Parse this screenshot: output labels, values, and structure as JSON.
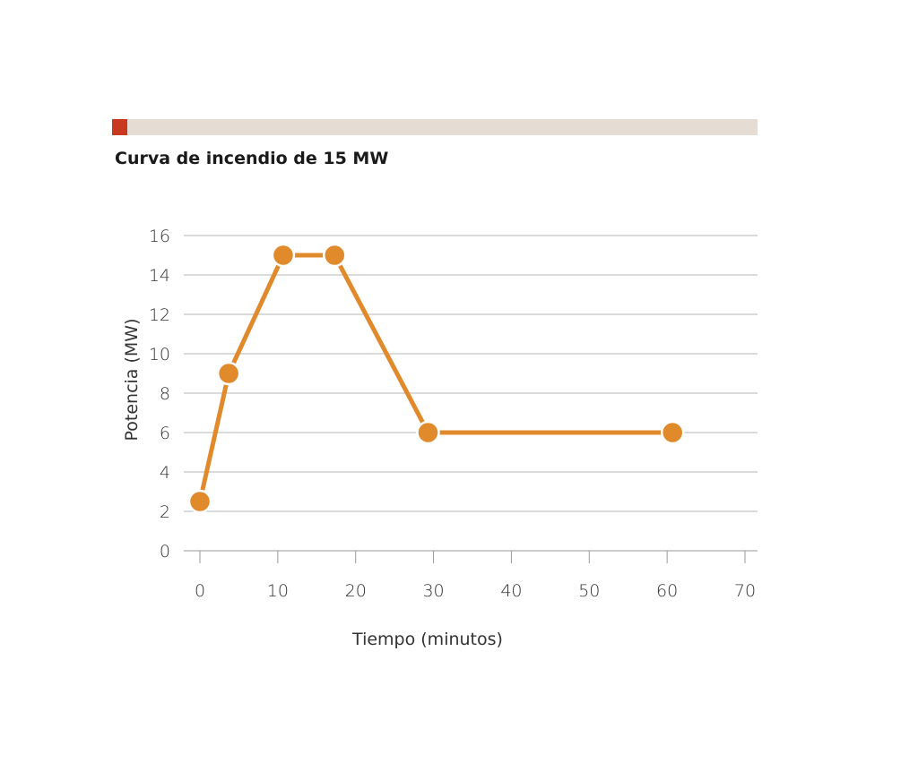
{
  "chart_data": {
    "type": "line",
    "title": "Curva de incendio de 15 MW",
    "xlabel": "Tiempo (minutos)",
    "ylabel": "Potencia (MW)",
    "xlim": [
      0,
      70
    ],
    "ylim": [
      0,
      16
    ],
    "x_ticks": [
      0,
      10,
      20,
      30,
      40,
      50,
      60,
      70
    ],
    "y_ticks": [
      0,
      2,
      4,
      6,
      8,
      10,
      12,
      14,
      16
    ],
    "grid": "horizontal",
    "series": [
      {
        "x": [
          0,
          3.7,
          10.7,
          17.3,
          29.3,
          60.7
        ],
        "y": [
          2.5,
          9,
          15,
          15,
          6,
          6
        ]
      }
    ]
  },
  "colors": {
    "line": "#e08a2c",
    "header_bar": "#e5ddd3",
    "header_accent": "#c8391f"
  }
}
